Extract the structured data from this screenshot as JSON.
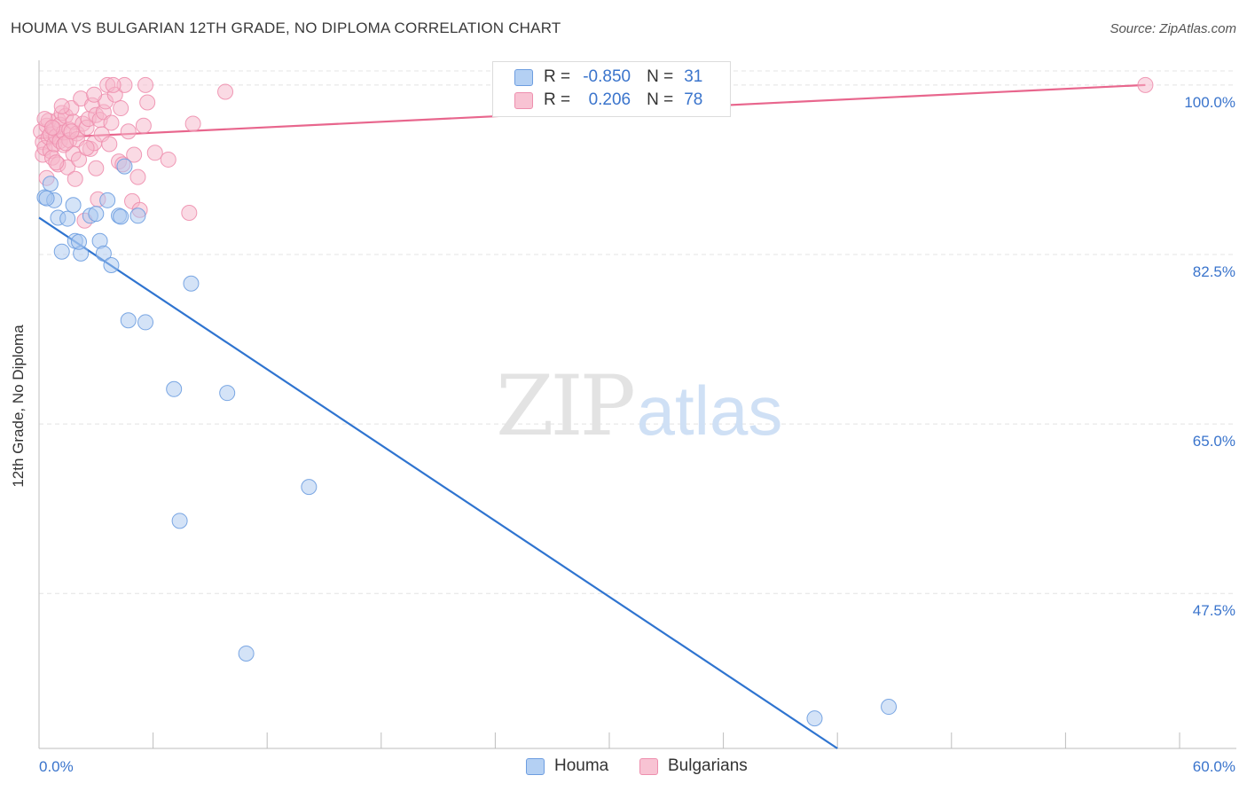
{
  "title": "HOUMA VS BULGARIAN 12TH GRADE, NO DIPLOMA CORRELATION CHART",
  "source": "Source: ZipAtlas.com",
  "watermark": {
    "zip": "ZIP",
    "atlas": "atlas"
  },
  "legend": {
    "r_label": "R =",
    "n_label": "N =",
    "houma": {
      "r": "-0.850",
      "n": "31"
    },
    "bulgarians": {
      "r": "0.206",
      "n": "78"
    }
  },
  "colors": {
    "houma_fill": "#a9c8f0",
    "houma_stroke": "#6d9de0",
    "houma_line": "#2f74d0",
    "bulg_fill": "#f6b6ca",
    "bulg_stroke": "#ee8fae",
    "bulg_line": "#e8668d",
    "grid": "#e4e4e4",
    "axis_text": "#3a74cc"
  },
  "chart_data": {
    "type": "scatter",
    "title": "HOUMA VS BULGARIAN 12TH GRADE, NO DIPLOMA CORRELATION CHART",
    "xlabel": "",
    "ylabel": "12th Grade, No Diploma",
    "xlim": [
      0,
      60
    ],
    "ylim": [
      31.5,
      102.0
    ],
    "x_tick_labels": [
      "0.0%",
      "60.0%"
    ],
    "y_ticks": [
      47.5,
      65.0,
      82.5,
      100.0
    ],
    "y_tick_labels": [
      "47.5%",
      "65.0%",
      "82.5%",
      "100.0%"
    ],
    "legend_position": "bottom-center",
    "series": [
      {
        "name": "Houma",
        "r": -0.85,
        "n": 31,
        "trend": {
          "x": [
            0.0,
            42.0
          ],
          "y": [
            86.3,
            31.5
          ]
        },
        "points": [
          [
            0.3,
            88.4
          ],
          [
            0.6,
            89.8
          ],
          [
            0.8,
            88.1
          ],
          [
            1.0,
            86.3
          ],
          [
            1.2,
            82.8
          ],
          [
            1.5,
            86.2
          ],
          [
            1.8,
            87.6
          ],
          [
            1.9,
            83.9
          ],
          [
            2.2,
            82.6
          ],
          [
            2.7,
            86.5
          ],
          [
            3.0,
            86.7
          ],
          [
            3.2,
            83.9
          ],
          [
            3.4,
            82.6
          ],
          [
            3.6,
            88.1
          ],
          [
            3.8,
            81.4
          ],
          [
            4.2,
            86.5
          ],
          [
            4.5,
            91.6
          ],
          [
            4.7,
            75.7
          ],
          [
            5.2,
            86.5
          ],
          [
            5.6,
            75.5
          ],
          [
            7.1,
            68.6
          ],
          [
            7.4,
            55.0
          ],
          [
            8.0,
            79.5
          ],
          [
            9.9,
            68.2
          ],
          [
            10.9,
            41.3
          ],
          [
            14.2,
            58.5
          ],
          [
            40.8,
            34.6
          ],
          [
            44.7,
            35.8
          ],
          [
            0.4,
            88.3
          ],
          [
            2.1,
            83.8
          ],
          [
            4.3,
            86.4
          ]
        ]
      },
      {
        "name": "Bulgarians",
        "r": 0.206,
        "n": 78,
        "trend": {
          "x": [
            0.0,
            58.2
          ],
          "y": [
            94.5,
            100.0
          ]
        },
        "points": [
          [
            0.1,
            95.2
          ],
          [
            0.2,
            94.1
          ],
          [
            0.2,
            92.8
          ],
          [
            0.3,
            93.5
          ],
          [
            0.4,
            90.4
          ],
          [
            0.4,
            95.8
          ],
          [
            0.5,
            94.6
          ],
          [
            0.5,
            96.3
          ],
          [
            0.6,
            93.2
          ],
          [
            0.6,
            94.9
          ],
          [
            0.7,
            92.5
          ],
          [
            0.8,
            95.5
          ],
          [
            0.8,
            93.9
          ],
          [
            0.9,
            94.7
          ],
          [
            1.0,
            96.4
          ],
          [
            1.0,
            91.8
          ],
          [
            1.1,
            95.9
          ],
          [
            1.1,
            94.2
          ],
          [
            1.2,
            97.1
          ],
          [
            1.3,
            93.8
          ],
          [
            1.3,
            95.1
          ],
          [
            1.4,
            96.8
          ],
          [
            1.5,
            91.5
          ],
          [
            1.6,
            95.4
          ],
          [
            1.6,
            94.3
          ],
          [
            1.7,
            97.6
          ],
          [
            1.8,
            92.9
          ],
          [
            1.8,
            96.2
          ],
          [
            1.9,
            90.3
          ],
          [
            2.0,
            95.0
          ],
          [
            2.0,
            94.4
          ],
          [
            2.1,
            92.3
          ],
          [
            2.2,
            98.6
          ],
          [
            2.3,
            96.0
          ],
          [
            2.4,
            86.0
          ],
          [
            2.5,
            95.6
          ],
          [
            2.6,
            96.5
          ],
          [
            2.7,
            93.4
          ],
          [
            2.8,
            97.9
          ],
          [
            2.9,
            94.0
          ],
          [
            3.0,
            96.9
          ],
          [
            3.0,
            91.4
          ],
          [
            3.1,
            88.2
          ],
          [
            3.2,
            96.4
          ],
          [
            3.3,
            94.9
          ],
          [
            3.4,
            97.2
          ],
          [
            3.5,
            98.3
          ],
          [
            3.6,
            100.0
          ],
          [
            3.7,
            93.9
          ],
          [
            3.8,
            96.1
          ],
          [
            4.0,
            99.0
          ],
          [
            4.2,
            92.1
          ],
          [
            4.3,
            97.6
          ],
          [
            4.5,
            100.0
          ],
          [
            4.7,
            95.2
          ],
          [
            4.9,
            88.0
          ],
          [
            5.0,
            92.8
          ],
          [
            5.2,
            90.5
          ],
          [
            5.3,
            87.1
          ],
          [
            5.5,
            95.8
          ],
          [
            5.6,
            100.0
          ],
          [
            5.7,
            98.2
          ],
          [
            6.1,
            93.0
          ],
          [
            6.8,
            92.3
          ],
          [
            7.9,
            86.8
          ],
          [
            8.1,
            96.0
          ],
          [
            9.8,
            99.3
          ],
          [
            58.2,
            100.0
          ],
          [
            0.3,
            96.5
          ],
          [
            0.9,
            92.0
          ],
          [
            1.4,
            94.0
          ],
          [
            1.7,
            95.2
          ],
          [
            2.5,
            93.5
          ],
          [
            3.9,
            100.0
          ],
          [
            4.4,
            91.8
          ],
          [
            2.9,
            99.0
          ],
          [
            1.2,
            97.8
          ],
          [
            0.7,
            95.6
          ]
        ]
      }
    ]
  }
}
